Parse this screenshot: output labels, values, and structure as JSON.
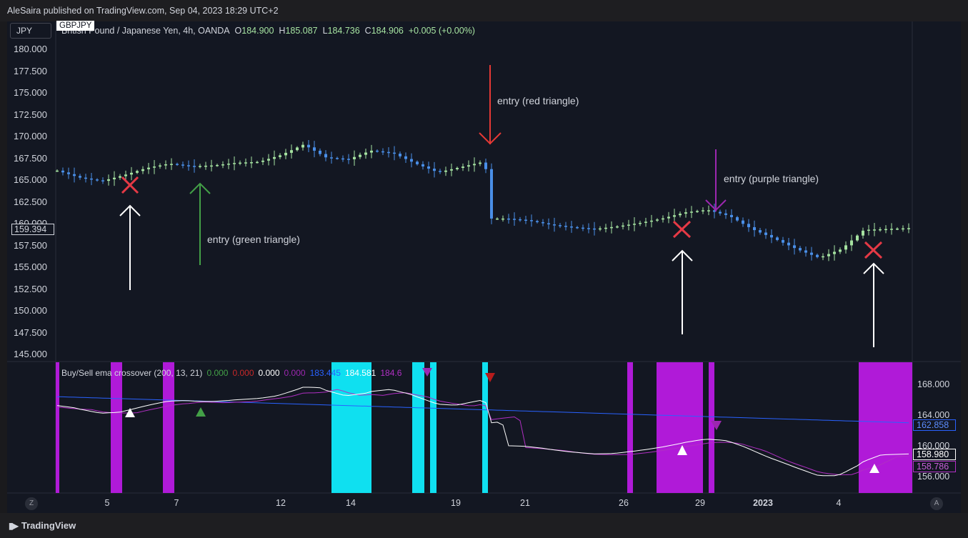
{
  "header": {
    "publisher": "AleSaira published on TradingView.com, Sep 04, 2023 18:29 UTC+2"
  },
  "toolbar": {
    "currency": "JPY",
    "symbol": "GBPJPY"
  },
  "legend": {
    "title": "British Pound / Japanese Yen, 4h, OANDA",
    "o_label": "O",
    "o": "184.900",
    "h_label": "H",
    "h": "185.087",
    "l_label": "L",
    "l": "184.736",
    "c_label": "C",
    "c": "184.906",
    "change": "+0.005 (+0.00%)"
  },
  "price_axis": {
    "labels": [
      "180.000",
      "177.500",
      "175.000",
      "172.500",
      "170.000",
      "167.500",
      "165.000",
      "162.500",
      "160.000",
      "157.500",
      "155.000",
      "152.500",
      "150.000",
      "147.500",
      "145.000"
    ],
    "current_price": "159.394"
  },
  "indicator_axis": {
    "labels": [
      "168.000",
      "164.000",
      "160.000",
      "156.000"
    ],
    "tags": {
      "blue": "162.858",
      "white": "158.980",
      "purple": "158.786"
    }
  },
  "time_axis": {
    "labels": [
      "5",
      "7",
      "12",
      "14",
      "19",
      "21",
      "26",
      "29",
      "2023",
      "4"
    ]
  },
  "indicator": {
    "name": "Buy/Sell ema crossover (200, 13, 21)",
    "v1": "0.000",
    "v2": "0.000",
    "v3": "0.000",
    "v4": "0.000",
    "v5": "183.445",
    "v6": "184.581",
    "v7": "184.6"
  },
  "annotations": {
    "green": "entry (green triangle)",
    "red": "entry (red triangle)",
    "purple": "entry (purple triangle)"
  },
  "buttons": {
    "z": "Z",
    "a": "A"
  },
  "footer": {
    "brand": "TradingView"
  },
  "colors": {
    "up": "#a6e3a1",
    "down": "#4a8fe8",
    "magenta": "#b01ad8",
    "cyan": "#0fe0f0",
    "ema_long": "#2962ff",
    "ema_fast": "#ffffff",
    "ema_slow": "#b12fc4",
    "green_arrow": "#43a047",
    "red_arrow": "#e53935",
    "purple_arrow": "#9c27b0"
  },
  "chart_data": {
    "type": "candlestick",
    "price_axis_range": [
      145,
      180
    ],
    "closes_approx": [
      166.0,
      165.2,
      164.8,
      165.5,
      166.3,
      166.8,
      166.5,
      166.6,
      166.9,
      167.0,
      167.8,
      169.0,
      167.5,
      167.3,
      168.3,
      168.0,
      166.8,
      165.8,
      166.4,
      167.0,
      160.5,
      160.3,
      159.8,
      159.5,
      159.3,
      159.6,
      160.0,
      160.5,
      161.2,
      161.5,
      160.8,
      159.3,
      158.2,
      157.0,
      156.0,
      157.0,
      159.2,
      159.3,
      159.4
    ],
    "indicator_range": [
      156,
      168
    ],
    "ema_long": [
      166.4,
      163.0
    ],
    "ema_fast_start": 166.0,
    "ema_fast_end": 158.98,
    "ema_slow_end": 158.786,
    "signal_markers": [
      "white up",
      "green up",
      "purple down",
      "red down",
      "white up",
      "purple down",
      "white up"
    ]
  }
}
